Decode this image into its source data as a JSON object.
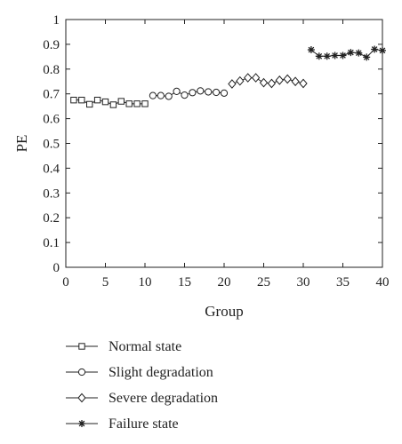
{
  "chart_data": {
    "type": "line",
    "title": "",
    "xlabel": "Group",
    "ylabel": "PE",
    "xlim": [
      0,
      40
    ],
    "ylim": [
      0,
      1
    ],
    "xticks": [
      0,
      5,
      10,
      15,
      20,
      25,
      30,
      35,
      40
    ],
    "yticks": [
      0,
      0.1,
      0.2,
      0.3,
      0.4,
      0.5,
      0.6,
      0.7,
      0.8,
      0.9,
      1
    ],
    "ytick_labels": [
      "0",
      "0.1",
      "0.2",
      "0.3",
      "0.4",
      "0.5",
      "0.6",
      "0.7",
      "0.8",
      "0.9",
      "1"
    ],
    "grid": false,
    "legend_position": "bottom",
    "series": [
      {
        "name": "Normal state",
        "marker": "square",
        "x": [
          1,
          2,
          3,
          4,
          5,
          6,
          7,
          8,
          9,
          10
        ],
        "values": [
          0.675,
          0.675,
          0.658,
          0.675,
          0.668,
          0.656,
          0.67,
          0.66,
          0.66,
          0.66
        ]
      },
      {
        "name": "Slight degradation",
        "marker": "circle",
        "x": [
          11,
          12,
          13,
          14,
          15,
          16,
          17,
          18,
          19,
          20
        ],
        "values": [
          0.693,
          0.693,
          0.69,
          0.71,
          0.695,
          0.705,
          0.712,
          0.708,
          0.706,
          0.703
        ]
      },
      {
        "name": "Severe degradation",
        "marker": "diamond",
        "x": [
          21,
          22,
          23,
          24,
          25,
          26,
          27,
          28,
          29,
          30
        ],
        "values": [
          0.74,
          0.752,
          0.765,
          0.765,
          0.745,
          0.742,
          0.755,
          0.76,
          0.75,
          0.742
        ]
      },
      {
        "name": "Failure state",
        "marker": "star",
        "x": [
          31,
          32,
          33,
          34,
          35,
          36,
          37,
          38,
          39,
          40
        ],
        "values": [
          0.878,
          0.852,
          0.852,
          0.855,
          0.855,
          0.867,
          0.865,
          0.848,
          0.88,
          0.875
        ]
      }
    ]
  }
}
